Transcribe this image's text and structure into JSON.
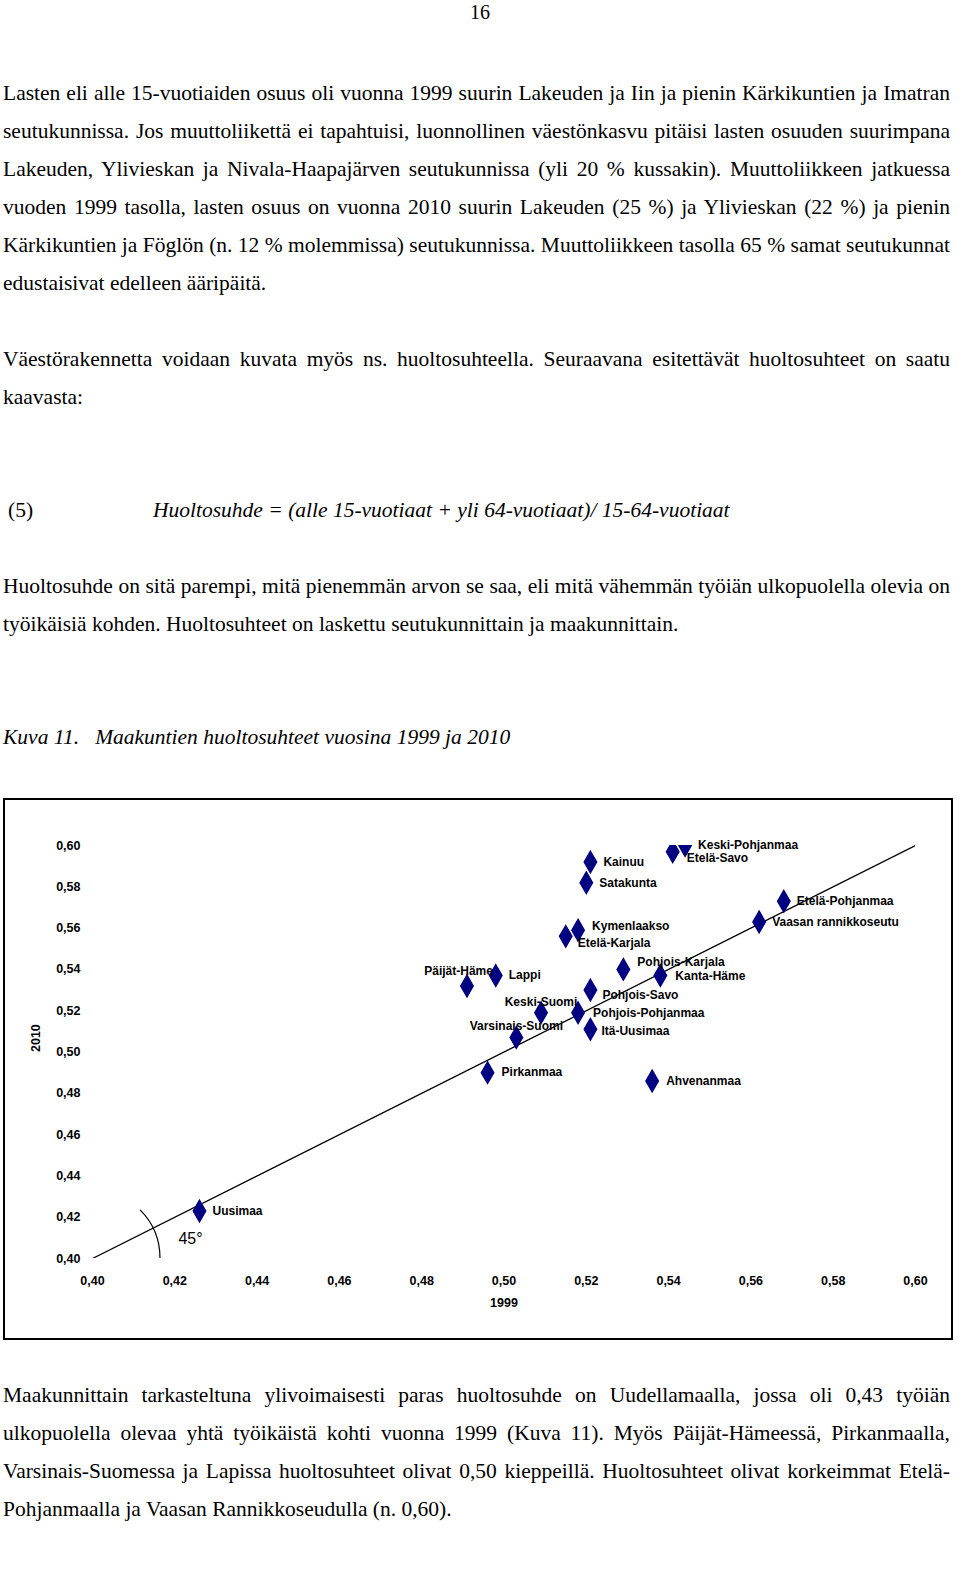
{
  "page_number": "16",
  "paragraphs_before": [
    "Lasten eli alle 15-vuotiaiden osuus oli vuonna 1999 suurin Lakeuden ja Iin ja pienin Kärkikuntien ja Imatran seutukunnissa. Jos muuttoliikettä ei tapahtuisi, luonnollinen väestönkasvu pitäisi lasten osuuden suurimpana Lakeuden, Ylivieskan ja Nivala-Haapajärven seutukunnissa (yli 20 % kussakin). Muuttoliikkeen jatkuessa vuoden 1999 tasolla, lasten osuus on vuonna 2010 suurin Lakeuden (25 %) ja Ylivieskan (22 %) ja pienin Kärkikuntien ja Föglön (n. 12 % molemmissa) seutukunnissa. Muuttoliikkeen tasolla 65 % samat seutukunnat edustaisivat edelleen ääripäitä.",
    "Väestörakennetta voidaan kuvata myös ns. huoltosuhteella. Seuraavana esitettävät huoltosuhteet on saatu kaavasta:"
  ],
  "formula": {
    "number": "(5)",
    "text": "Huoltosuhde = (alle 15-vuotiaat + yli 64-vuotiaat)/ 15-64-vuotiaat"
  },
  "paragraphs_middle": [
    "Huoltosuhde on sitä parempi, mitä pienemmän arvon se saa, eli mitä vähemmän työiän ulkopuolella olevia on työikäisiä kohden. Huoltosuhteet on laskettu seutukunnittain ja maakunnittain."
  ],
  "caption": {
    "label": "Kuva 11.",
    "text": "Maakuntien huoltosuhteet vuosina 1999 ja 2010"
  },
  "chart_data": {
    "type": "scatter",
    "x_label": "1999",
    "y_label": "2010",
    "labels": [
      "Uusimaa",
      "Päijät-Häme",
      "Lappi",
      "Pirkanmaa",
      "Varsinais-Suomi",
      "Keski-Suomi",
      "Kainuu",
      "Satakunta",
      "Kymenlaakso",
      "Etelä-Karjala",
      "Pohjois-Karjala",
      "Pohjois-Savo",
      "Pohjois-Pohjanmaa",
      "Itä-Uusimaa",
      "Kanta-Häme",
      "Ahvenanmaa",
      "Keski-Pohjanmaa",
      "Etelä-Savo",
      "Etelä-Pohjanmaa",
      "Vaasan rannikkoseutu"
    ],
    "x": [
      0.426,
      0.491,
      0.498,
      0.496,
      0.503,
      0.509,
      0.521,
      0.52,
      0.518,
      0.515,
      0.529,
      0.521,
      0.518,
      0.521,
      0.538,
      0.536,
      0.544,
      0.541,
      0.568,
      0.562
    ],
    "values": [
      0.423,
      0.532,
      0.537,
      0.49,
      0.507,
      0.519,
      0.592,
      0.582,
      0.559,
      0.556,
      0.54,
      0.53,
      0.519,
      0.511,
      0.537,
      0.486,
      0.6,
      0.597,
      0.573,
      0.563
    ],
    "color": "#000080",
    "marker": "diamond",
    "annotations": [
      "45°"
    ],
    "xlim": [
      0.4,
      0.6
    ],
    "ylim": [
      0.4,
      0.6
    ],
    "xticks": [
      {
        "value": 0.4,
        "label": "0,40"
      },
      {
        "value": 0.42,
        "label": "0,42"
      },
      {
        "value": 0.44,
        "label": "0,44"
      },
      {
        "value": 0.46,
        "label": "0,46"
      },
      {
        "value": 0.48,
        "label": "0,48"
      },
      {
        "value": 0.5,
        "label": "0,50"
      },
      {
        "value": 0.52,
        "label": "0,52"
      },
      {
        "value": 0.54,
        "label": "0,54"
      },
      {
        "value": 0.56,
        "label": "0,56"
      },
      {
        "value": 0.58,
        "label": "0,58"
      },
      {
        "value": 0.6,
        "label": "0,60"
      }
    ],
    "yticks": [
      {
        "value": 0.4,
        "label": "0,40"
      },
      {
        "value": 0.42,
        "label": "0,42"
      },
      {
        "value": 0.44,
        "label": "0,44"
      },
      {
        "value": 0.46,
        "label": "0,46"
      },
      {
        "value": 0.48,
        "label": "0,48"
      },
      {
        "value": 0.5,
        "label": "0,50"
      },
      {
        "value": 0.52,
        "label": "0,52"
      },
      {
        "value": 0.54,
        "label": "0,54"
      },
      {
        "value": 0.56,
        "label": "0,56"
      },
      {
        "value": 0.58,
        "label": "0,58"
      },
      {
        "value": 0.6,
        "label": "0,60"
      }
    ],
    "grid": false
  },
  "paragraphs_after": [
    "Maakunnittain tarkasteltuna ylivoimaisesti paras huoltosuhde on Uudellamaalla, jossa oli 0,43 työiän ulkopuolella olevaa yhtä työikäistä kohti vuonna 1999 (Kuva 11). Myös Päijät-Hämeessä, Pirkanmaalla, Varsinais-Suomessa ja Lapissa huoltosuhteet olivat 0,50 kieppeillä. Huoltosuhteet olivat korkeimmat Etelä-Pohjanmaalla ja Vaasan Rannikkoseudulla (n. 0,60)."
  ]
}
